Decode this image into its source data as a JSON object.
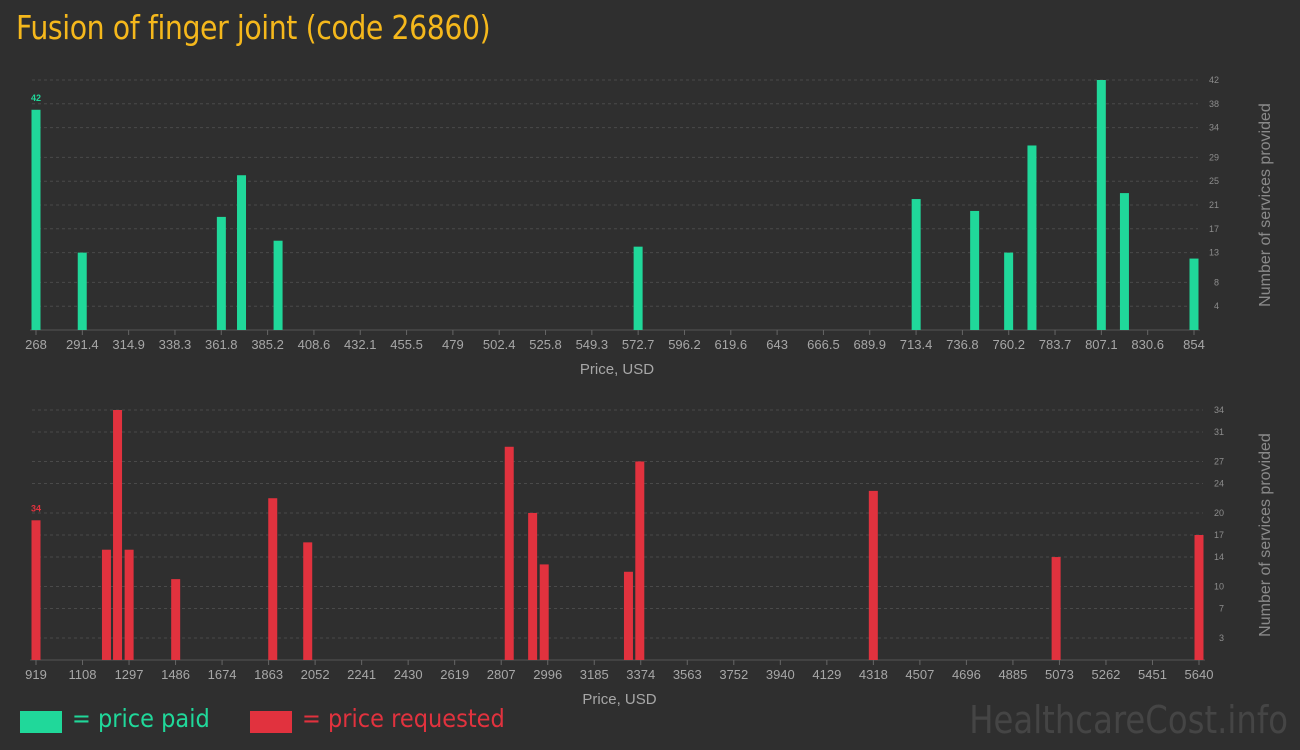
{
  "title": "Fusion of finger joint (code 26860)",
  "legend": {
    "paid": {
      "label": "= price paid",
      "color": "#20d89a"
    },
    "requested": {
      "label": "= price requested",
      "color": "#e1323e"
    }
  },
  "watermark": "HealthcareCost.info",
  "chart_data": [
    {
      "type": "bar",
      "title": "",
      "xlabel": "Price, USD",
      "ylabel": "Number of services provided",
      "color": "#20d89a",
      "x_ticks": [
        "268",
        "291.4",
        "314.9",
        "338.3",
        "361.8",
        "385.2",
        "408.6",
        "432.1",
        "455.5",
        "479",
        "502.4",
        "525.8",
        "549.3",
        "572.7",
        "596.2",
        "619.6",
        "643",
        "666.5",
        "689.9",
        "713.4",
        "736.8",
        "760.2",
        "783.7",
        "807.1",
        "830.6",
        "854"
      ],
      "y_ticks": [
        4,
        8,
        13,
        17,
        21,
        25,
        29,
        34,
        38,
        42
      ],
      "xlim": [
        268,
        854
      ],
      "ylim": [
        0,
        42
      ],
      "peak_label": "42",
      "bars": [
        {
          "x": 268,
          "y": 37
        },
        {
          "x": 291.4,
          "y": 13
        },
        {
          "x": 361.8,
          "y": 19
        },
        {
          "x": 372,
          "y": 26
        },
        {
          "x": 390.5,
          "y": 15
        },
        {
          "x": 572.7,
          "y": 14
        },
        {
          "x": 713.4,
          "y": 22
        },
        {
          "x": 743,
          "y": 20
        },
        {
          "x": 760.2,
          "y": 13
        },
        {
          "x": 772,
          "y": 31
        },
        {
          "x": 807.1,
          "y": 42
        },
        {
          "x": 818.8,
          "y": 23
        },
        {
          "x": 854,
          "y": 12
        }
      ]
    },
    {
      "type": "bar",
      "title": "",
      "xlabel": "Price, USD",
      "ylabel": "Number of services provided",
      "color": "#e1323e",
      "x_ticks": [
        "919",
        "1108",
        "1297",
        "1486",
        "1674",
        "1863",
        "2052",
        "2241",
        "2430",
        "2619",
        "2807",
        "2996",
        "3185",
        "3374",
        "3563",
        "3752",
        "3940",
        "4129",
        "4318",
        "4507",
        "4696",
        "4885",
        "5073",
        "5262",
        "5451",
        "5640"
      ],
      "y_ticks": [
        3,
        7,
        10,
        14,
        17,
        20,
        24,
        27,
        31,
        34
      ],
      "xlim": [
        919,
        5640
      ],
      "ylim": [
        0,
        34
      ],
      "peak_label": "34",
      "bars": [
        {
          "x": 919,
          "y": 19
        },
        {
          "x": 1205,
          "y": 15
        },
        {
          "x": 1250,
          "y": 34
        },
        {
          "x": 1297,
          "y": 15
        },
        {
          "x": 1486,
          "y": 11
        },
        {
          "x": 1880,
          "y": 22
        },
        {
          "x": 2022,
          "y": 16
        },
        {
          "x": 2840,
          "y": 29
        },
        {
          "x": 2935,
          "y": 20
        },
        {
          "x": 2982,
          "y": 13
        },
        {
          "x": 3324,
          "y": 12
        },
        {
          "x": 3370,
          "y": 27
        },
        {
          "x": 4318,
          "y": 23
        },
        {
          "x": 5060,
          "y": 14
        },
        {
          "x": 5640,
          "y": 17
        }
      ]
    }
  ]
}
